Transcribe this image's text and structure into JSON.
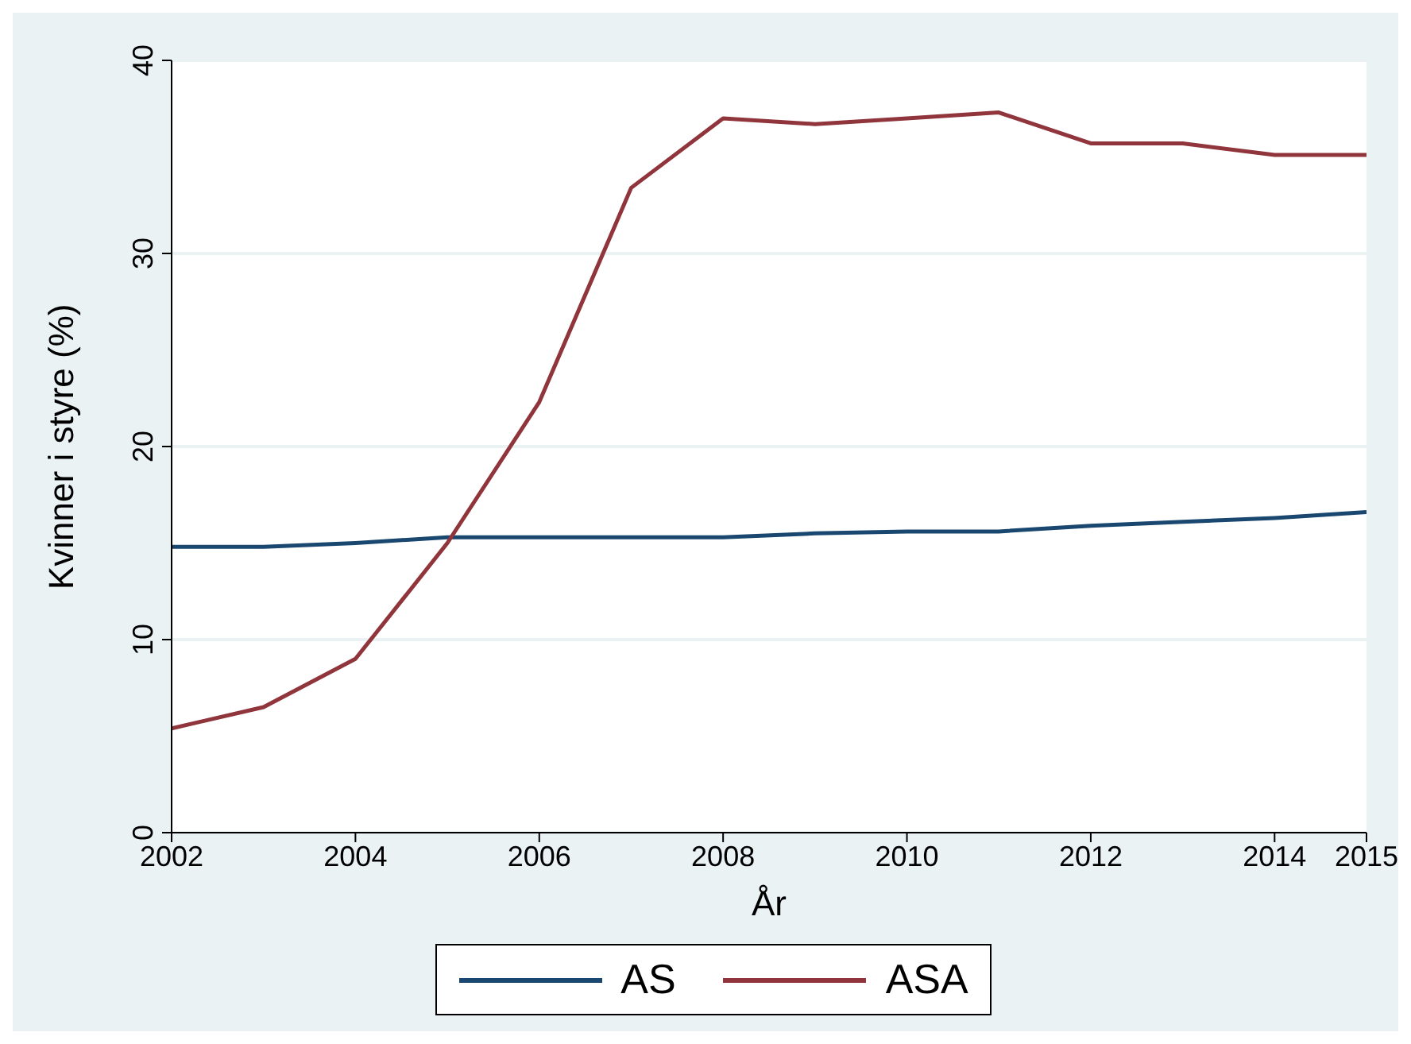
{
  "chart_data": {
    "type": "line",
    "xlabel": "År",
    "ylabel": "Kvinner i styre (%)",
    "x": [
      2002,
      2003,
      2004,
      2005,
      2006,
      2007,
      2008,
      2009,
      2010,
      2011,
      2012,
      2013,
      2014,
      2015
    ],
    "series": [
      {
        "name": "AS",
        "color": "#1a476f",
        "values": [
          14.8,
          14.8,
          15.0,
          15.3,
          15.3,
          15.3,
          15.3,
          15.5,
          15.6,
          15.6,
          15.9,
          16.1,
          16.3,
          16.6
        ]
      },
      {
        "name": "ASA",
        "color": "#90353b",
        "values": [
          5.4,
          6.5,
          9.0,
          15.0,
          22.3,
          33.4,
          37.0,
          36.7,
          37.0,
          37.3,
          35.7,
          35.7,
          35.1,
          35.1
        ]
      }
    ],
    "xlim": [
      2002,
      2015
    ],
    "xticks": [
      2002,
      2004,
      2006,
      2008,
      2010,
      2012,
      2014,
      2015
    ],
    "ylim": [
      0,
      40
    ],
    "yticks": [
      0,
      10,
      20,
      30,
      40
    ],
    "grid": "y",
    "legend": "bottom",
    "marker": "none",
    "line_style": "solid"
  }
}
